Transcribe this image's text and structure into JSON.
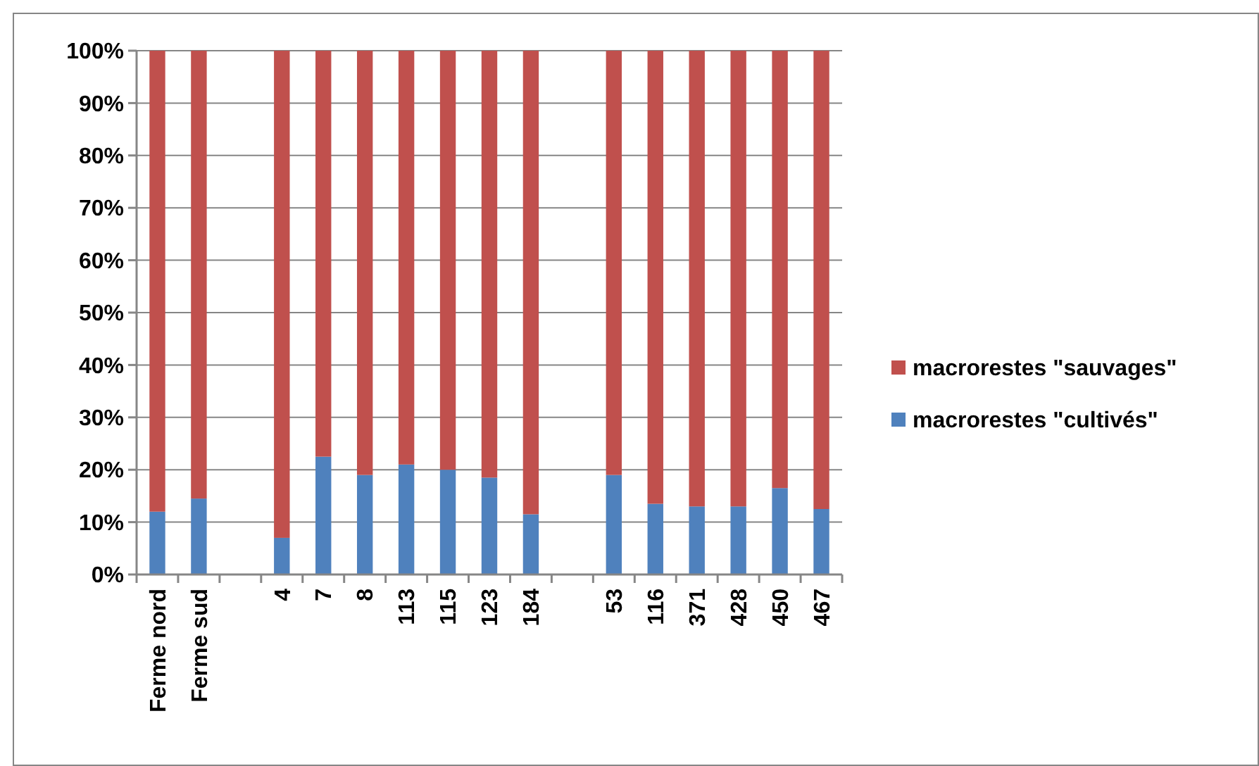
{
  "chart_data": {
    "type": "bar",
    "stacked": true,
    "categories": [
      "Ferme nord",
      "Ferme sud",
      null,
      "4",
      "7",
      "8",
      "113",
      "115",
      "123",
      "184",
      null,
      "53",
      "116",
      "371",
      "428",
      "450",
      "467"
    ],
    "series": [
      {
        "name": "macrorestes \"cultivés\"",
        "color": "#4f81bd",
        "values": [
          12,
          14.5,
          null,
          7,
          22.5,
          19,
          21,
          20,
          18.5,
          11.5,
          null,
          19,
          13.5,
          13,
          13,
          16.5,
          12.5
        ]
      },
      {
        "name": "macrorestes \"sauvages\"",
        "color": "#c0504d",
        "values": [
          88,
          85.5,
          null,
          93,
          77.5,
          81,
          79,
          80,
          81.5,
          88.5,
          null,
          81,
          86.5,
          87,
          87,
          83.5,
          87.5
        ]
      }
    ],
    "ylim": [
      0,
      100
    ],
    "yticks": [
      {
        "value": 0,
        "label": "0%"
      },
      {
        "value": 10,
        "label": "10%"
      },
      {
        "value": 20,
        "label": "20%"
      },
      {
        "value": 30,
        "label": "30%"
      },
      {
        "value": 40,
        "label": "40%"
      },
      {
        "value": 50,
        "label": "50%"
      },
      {
        "value": 60,
        "label": "60%"
      },
      {
        "value": 70,
        "label": "70%"
      },
      {
        "value": 80,
        "label": "80%"
      },
      {
        "value": 90,
        "label": "90%"
      },
      {
        "value": 100,
        "label": "100%"
      }
    ],
    "grid": "y",
    "legend": "right"
  }
}
